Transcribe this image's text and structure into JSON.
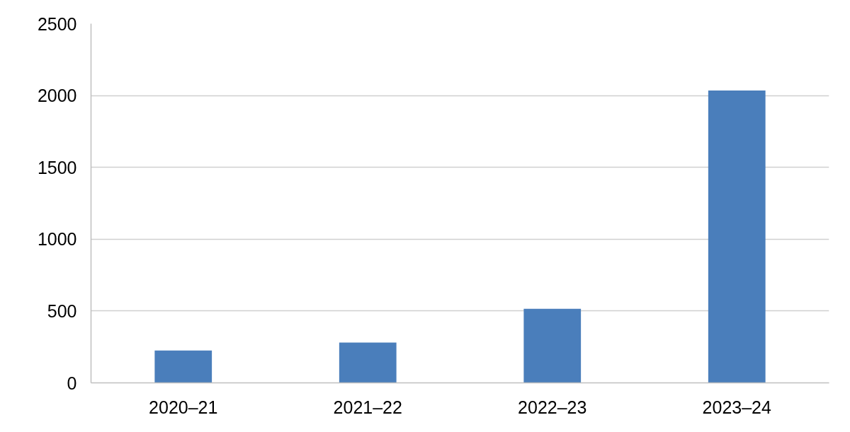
{
  "chart_data": {
    "type": "bar",
    "categories": [
      "2020–21",
      "2021–22",
      "2022–23",
      "2023–24"
    ],
    "series": [
      {
        "color": "#4a7ebb",
        "values": [
          225,
          280,
          515,
          2035
        ]
      }
    ],
    "ylim": [
      0,
      2500
    ],
    "yticks": [
      0,
      500,
      1000,
      1500,
      2000,
      2500
    ],
    "grid": "y"
  }
}
